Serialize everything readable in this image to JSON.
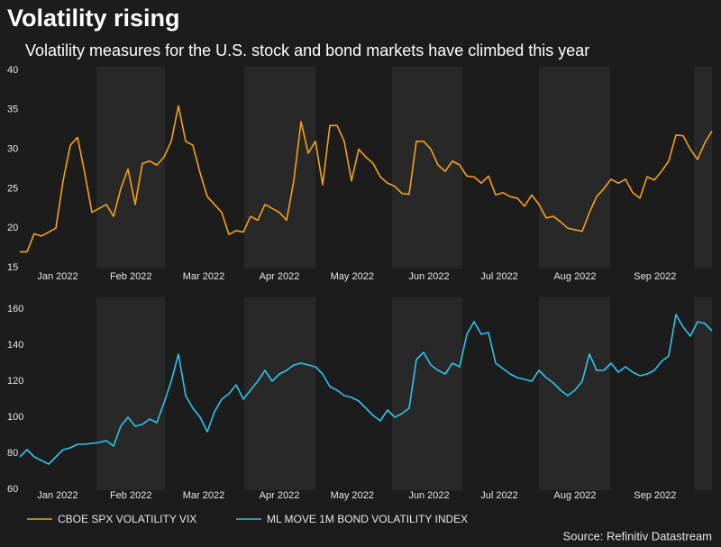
{
  "chart_data": [
    {
      "type": "line",
      "title": "Volatility rising",
      "subtitle": "Volatility measures for the U.S. stock and bond markets have climbed this year",
      "x": [
        0,
        1,
        2,
        3,
        4,
        5,
        6,
        7,
        8,
        9,
        10,
        11,
        12,
        13,
        14,
        15,
        16,
        17,
        18,
        19,
        20,
        21,
        22,
        23,
        24,
        25,
        26,
        27,
        28,
        29,
        30,
        31,
        32,
        33,
        34,
        35,
        36,
        37,
        38,
        39,
        40,
        41,
        42,
        43,
        44,
        45,
        46,
        47,
        48,
        49,
        50,
        51,
        52,
        53,
        54,
        55,
        56,
        57,
        58,
        59,
        60,
        61,
        62,
        63,
        64,
        65,
        66,
        67,
        68,
        69,
        70,
        71,
        72,
        73,
        74,
        75,
        76,
        77,
        78,
        79,
        80,
        81,
        82,
        83,
        84,
        85,
        86,
        87,
        88,
        89,
        90,
        91,
        92,
        93,
        94,
        95,
        96
      ],
      "series": [
        {
          "name": "CBOE SPX VOLATILITY VIX",
          "color": "#f5a01a",
          "values": [
            17,
            17,
            19.3,
            19,
            19.5,
            20,
            26,
            30.5,
            31.5,
            27,
            22,
            22.5,
            23,
            21.5,
            25,
            27.5,
            23,
            28.2,
            28.5,
            28,
            29,
            31,
            35.5,
            31,
            30.5,
            27,
            24,
            23,
            22,
            19.2,
            19.7,
            19.5,
            21.5,
            21,
            23,
            22.5,
            22,
            21,
            26,
            33.5,
            29.5,
            31,
            25.5,
            33,
            33,
            31,
            26,
            30,
            29,
            28.2,
            26.5,
            25.7,
            25.3,
            24.4,
            24.3,
            31,
            31,
            30,
            28,
            27.2,
            28.5,
            28,
            26.6,
            26.5,
            25.7,
            26.6,
            24.2,
            24.5,
            24,
            23.8,
            22.8,
            24.2,
            23,
            21.3,
            21.5,
            20.8,
            20,
            19.8,
            19.6,
            22,
            24,
            25,
            26.2,
            25.7,
            26.2,
            24.5,
            23.8,
            26.5,
            26.1,
            27.2,
            28.5,
            31.8,
            31.7,
            30,
            28.7,
            30.8,
            32.3
          ]
        }
      ],
      "xlim": [
        0,
        96
      ],
      "xticks": [
        {
          "value": 5.25,
          "label": "Jan 2022"
        },
        {
          "value": 15.4,
          "label": "Feb 2022"
        },
        {
          "value": 25.5,
          "label": "Mar 2022"
        },
        {
          "value": 36,
          "label": "Apr 2022"
        },
        {
          "value": 46.1,
          "label": "May 2022"
        },
        {
          "value": 56.75,
          "label": "Jun 2022"
        },
        {
          "value": 66.5,
          "label": "Jul 2022"
        },
        {
          "value": 77,
          "label": "Aug 2022"
        },
        {
          "value": 88.1,
          "label": "Sep 2022"
        }
      ],
      "ylim": [
        15,
        40
      ],
      "yticks": [
        15,
        20,
        25,
        30,
        35,
        40
      ]
    },
    {
      "type": "line",
      "source": "Source: Refinitiv Datastream",
      "x": [
        0,
        1,
        2,
        3,
        4,
        5,
        6,
        7,
        8,
        9,
        10,
        11,
        12,
        13,
        14,
        15,
        16,
        17,
        18,
        19,
        20,
        21,
        22,
        23,
        24,
        25,
        26,
        27,
        28,
        29,
        30,
        31,
        32,
        33,
        34,
        35,
        36,
        37,
        38,
        39,
        40,
        41,
        42,
        43,
        44,
        45,
        46,
        47,
        48,
        49,
        50,
        51,
        52,
        53,
        54,
        55,
        56,
        57,
        58,
        59,
        60,
        61,
        62,
        63,
        64,
        65,
        66,
        67,
        68,
        69,
        70,
        71,
        72,
        73,
        74,
        75,
        76,
        77,
        78,
        79,
        80,
        81,
        82,
        83,
        84,
        85,
        86,
        87,
        88,
        89,
        90,
        91,
        92,
        93,
        94,
        95,
        96
      ],
      "series": [
        {
          "name": "ML MOVE 1M BOND VOLATILITY INDEX",
          "color": "#2ec4f0",
          "values": [
            78,
            82,
            78,
            76,
            74,
            78,
            82,
            83,
            85,
            85,
            85.5,
            86,
            87,
            84,
            95,
            100,
            95,
            96,
            99,
            97,
            108,
            120,
            135,
            112,
            105,
            100,
            92,
            103,
            110,
            113,
            118,
            110,
            115,
            120,
            126,
            120,
            124,
            126,
            129,
            130,
            129,
            128,
            124,
            117,
            115,
            112,
            111,
            109,
            105,
            101,
            98,
            104,
            100,
            102,
            105,
            132,
            136,
            129,
            126,
            124,
            130,
            128,
            146,
            153,
            146,
            147,
            130,
            127,
            124,
            122,
            121,
            120,
            126,
            122,
            119,
            115,
            112,
            115,
            120,
            135,
            126,
            126,
            130,
            125,
            128,
            125,
            123,
            124,
            126,
            131,
            134,
            157,
            150,
            145,
            153,
            152,
            148
          ]
        }
      ],
      "xlim": [
        0,
        96
      ],
      "xticks": [
        {
          "value": 5.25,
          "label": "Jan 2022"
        },
        {
          "value": 15.4,
          "label": "Feb 2022"
        },
        {
          "value": 25.5,
          "label": "Mar 2022"
        },
        {
          "value": 36,
          "label": "Apr 2022"
        },
        {
          "value": 46.1,
          "label": "May 2022"
        },
        {
          "value": 56.75,
          "label": "Jun 2022"
        },
        {
          "value": 66.5,
          "label": "Jul 2022"
        },
        {
          "value": 77,
          "label": "Aug 2022"
        },
        {
          "value": 88.1,
          "label": "Sep 2022"
        }
      ],
      "ylim": [
        60,
        160
      ],
      "yticks": [
        60,
        80,
        100,
        120,
        140,
        160
      ]
    }
  ]
}
